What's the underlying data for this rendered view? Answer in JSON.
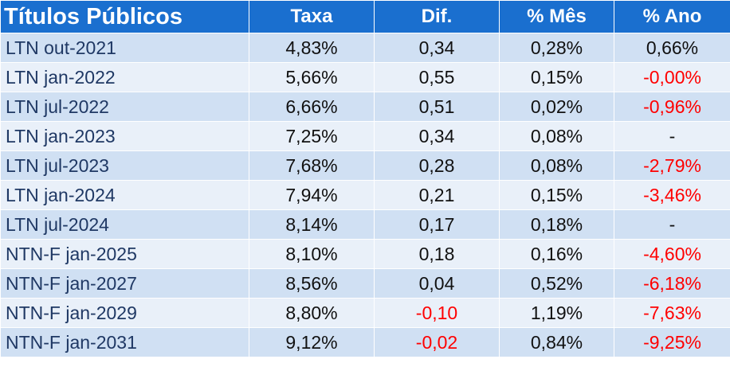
{
  "table": {
    "headers": [
      "Títulos Públicos",
      "Taxa",
      "Dif.",
      "% Mês",
      "% Ano"
    ],
    "rows": [
      [
        "LTN out-2021",
        "4,83%",
        "0,34",
        "0,28%",
        "0,66%"
      ],
      [
        "LTN jan-2022",
        "5,66%",
        "0,55",
        "0,15%",
        "-0,00%"
      ],
      [
        "LTN jul-2022",
        "6,66%",
        "0,51",
        "0,02%",
        "-0,96%"
      ],
      [
        "LTN jan-2023",
        "7,25%",
        "0,34",
        "0,08%",
        "-"
      ],
      [
        "LTN jul-2023",
        "7,68%",
        "0,28",
        "0,08%",
        "-2,79%"
      ],
      [
        "LTN jan-2024",
        "7,94%",
        "0,21",
        "0,15%",
        "-3,46%"
      ],
      [
        "LTN jul-2024",
        "8,14%",
        "0,17",
        "0,18%",
        "-"
      ],
      [
        "NTN-F jan-2025",
        "8,10%",
        "0,18",
        "0,16%",
        "-4,60%"
      ],
      [
        "NTN-F jan-2027",
        "8,56%",
        "0,04",
        "0,52%",
        "-6,18%"
      ],
      [
        "NTN-F jan-2029",
        "8,80%",
        "-0,10",
        "1,19%",
        "-7,63%"
      ],
      [
        "NTN-F jan-2031",
        "9,12%",
        "-0,02",
        "0,84%",
        "-9,25%"
      ]
    ]
  },
  "colors": {
    "header_bg": "#1a6fcf",
    "header_text": "#ffffff",
    "row_even_bg": "#d0e0f3",
    "row_odd_bg": "#e9f0f9",
    "name_text": "#1f3864",
    "negative_text": "#ff0000"
  }
}
